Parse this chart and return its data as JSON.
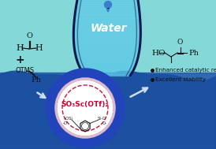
{
  "water_text": "Water",
  "water_text_color": "#ffffff",
  "water_text_fontsize": 10,
  "catalyst_label": "SO₃Sc(OTf)₂",
  "catalyst_color": "#cc0033",
  "catalyst_fontsize": 6.5,
  "bullet_text": [
    "Enhanced catalytic reactivity",
    "Excellent stability"
  ],
  "bullet_fontsize": 5.2,
  "bg_color": "#85d8d8",
  "water_deep_color": "#1a4fa0",
  "outer_circle_color": "#2244bb",
  "inner_circle_color": "#ffffff",
  "arrow_color": "#ccddee",
  "bond_color": "#111111",
  "figsize": [
    2.74,
    1.89
  ],
  "dpi": 100
}
